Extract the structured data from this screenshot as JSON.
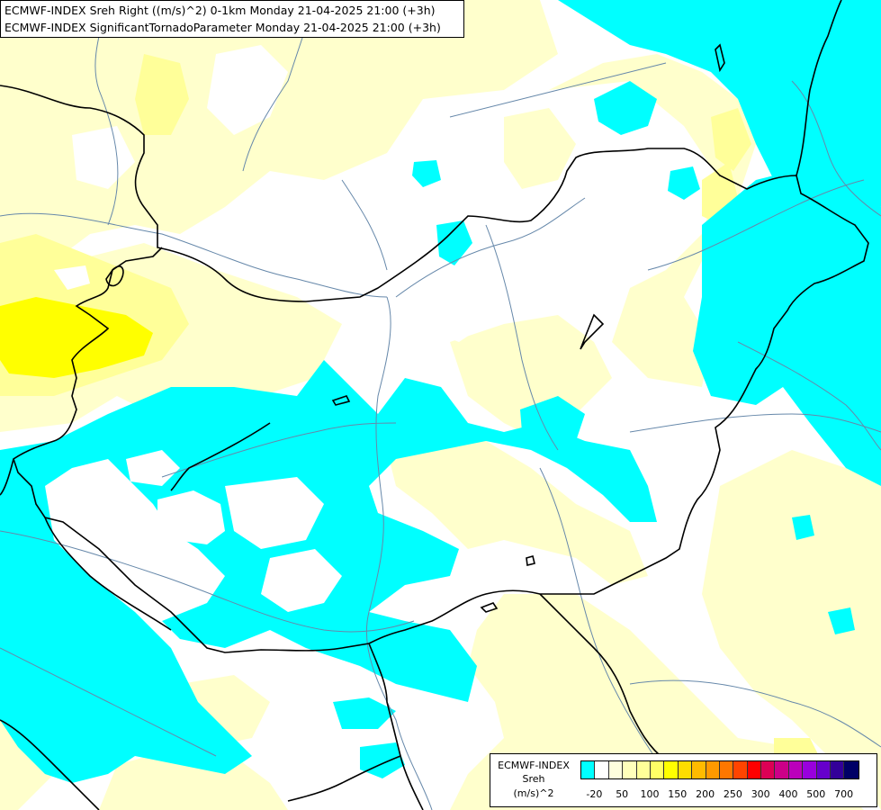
{
  "header": {
    "line1": "ECMWF-INDEX Sreh Right ((m/s)^2) 0-1km Monday 21-04-2025 21:00 (+3h)",
    "line2": "ECMWF-INDEX SignificantTornadoParameter Monday 21-04-2025 21:00 (+3h)"
  },
  "legend": {
    "title": "ECMWF-INDEX",
    "name": "Sreh",
    "unit": "(m/s)^2",
    "colors": [
      "#00ffff",
      "#ffffff",
      "#ffffdd",
      "#ffffbb",
      "#ffff99",
      "#ffff66",
      "#ffff00",
      "#ffdd00",
      "#ffbb00",
      "#ff9900",
      "#ff7700",
      "#ff4400",
      "#ff0000",
      "#dd0055",
      "#cc0088",
      "#bb00bb",
      "#9900dd",
      "#6600cc",
      "#330099",
      "#000066"
    ],
    "ticks": [
      "-20",
      "50",
      "100",
      "150",
      "200",
      "250",
      "300",
      "400",
      "500",
      "700"
    ]
  },
  "map": {
    "fill_colors": {
      "negative": "#00ffff",
      "light_positive": "#ffffcc",
      "mid_positive": "#ffff99",
      "high_positive": "#ffff00"
    },
    "line_colors": {
      "borders": "#000000",
      "rivers": "#6688aa"
    }
  }
}
